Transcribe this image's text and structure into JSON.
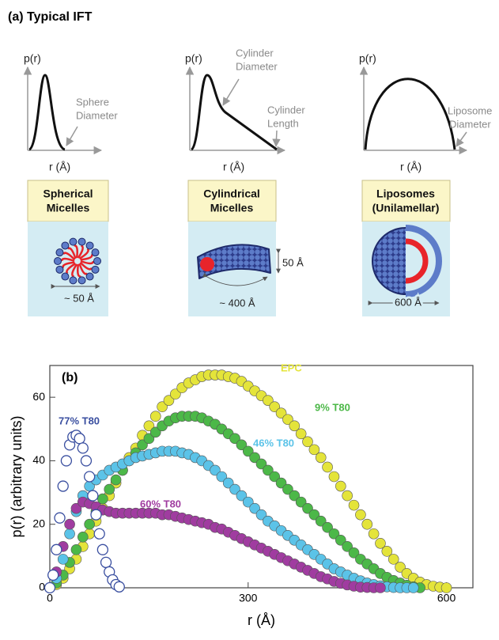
{
  "panel_a": {
    "title": "(a) Typical IFT",
    "columns": [
      {
        "ylabel": "p(r)",
        "xlabel": "r (Å)",
        "notes": [
          [
            "Sphere",
            "Diameter"
          ]
        ],
        "box": [
          "Spherical",
          "Micelles"
        ],
        "dims": [
          "~ 50 Å"
        ]
      },
      {
        "ylabel": "p(r)",
        "xlabel": "r (Å)",
        "notes": [
          [
            "Cylinder",
            "Diameter"
          ],
          [
            "Cylinder",
            "Length"
          ]
        ],
        "box": [
          "Cylindrical",
          "Micelles"
        ],
        "dims": [
          "~ 400 Å",
          "50 Å"
        ]
      },
      {
        "ylabel": "p(r)",
        "xlabel": "r (Å)",
        "notes": [
          [
            "Liposome",
            "Diameter"
          ]
        ],
        "box": [
          "Liposomes",
          "(Unilamellar)"
        ],
        "dims": [
          "600 Å"
        ]
      }
    ]
  },
  "chart_data": {
    "type": "scatter",
    "panel_label": "(b)",
    "x_label": "r (Å)",
    "y_label": "p(r) (arbitrary units)",
    "xlim": [
      0,
      640
    ],
    "ylim": [
      0,
      70
    ],
    "xticks": [
      0,
      300,
      600
    ],
    "yticks": [
      0,
      20,
      40,
      60
    ],
    "series": [
      {
        "name": "EPC",
        "color": "#e4e43a",
        "marker": "filled",
        "x": [
          0,
          10,
          20,
          30,
          40,
          50,
          60,
          70,
          80,
          90,
          100,
          110,
          120,
          130,
          140,
          150,
          160,
          170,
          180,
          190,
          200,
          210,
          220,
          230,
          240,
          250,
          260,
          270,
          280,
          290,
          300,
          310,
          320,
          330,
          340,
          350,
          360,
          370,
          380,
          390,
          400,
          410,
          420,
          430,
          440,
          450,
          460,
          470,
          480,
          490,
          500,
          510,
          520,
          530,
          540,
          550,
          560,
          570,
          580,
          590,
          600
        ],
        "values": [
          0,
          1,
          3,
          6,
          9,
          13,
          17,
          21,
          25,
          29,
          33,
          37,
          41,
          44,
          48,
          51,
          54,
          57,
          59,
          61,
          63,
          64.5,
          65.5,
          66.5,
          67,
          67,
          67,
          66.5,
          66,
          65,
          63.5,
          62,
          60.5,
          59,
          57,
          55,
          53,
          51,
          48.5,
          46,
          43.5,
          41,
          38,
          35,
          32,
          29,
          26,
          23,
          20,
          17,
          14,
          11.5,
          9,
          6.5,
          4.5,
          3,
          1.8,
          1,
          0.5,
          0.2,
          0
        ]
      },
      {
        "name": "9% T80",
        "color": "#4cb848",
        "marker": "filled",
        "x": [
          0,
          10,
          20,
          30,
          40,
          50,
          60,
          70,
          80,
          90,
          100,
          110,
          120,
          130,
          140,
          150,
          160,
          170,
          180,
          190,
          200,
          210,
          220,
          230,
          240,
          250,
          260,
          270,
          280,
          290,
          300,
          310,
          320,
          330,
          340,
          350,
          360,
          370,
          380,
          390,
          400,
          410,
          420,
          430,
          440,
          450,
          460,
          470,
          480,
          490,
          500,
          510,
          520,
          530,
          540,
          550,
          560
        ],
        "values": [
          0,
          1.5,
          4,
          8,
          12,
          16,
          20,
          24,
          28,
          31,
          34,
          37,
          40,
          42.5,
          45,
          47,
          49,
          51,
          52.5,
          53.5,
          54,
          54,
          54,
          53.5,
          52.5,
          51.5,
          50,
          48.5,
          47,
          45,
          43,
          41,
          39,
          37,
          35,
          33,
          31,
          29,
          27,
          25,
          23,
          21,
          19,
          17,
          15,
          13,
          11,
          9,
          7.5,
          6,
          4.5,
          3.3,
          2.3,
          1.5,
          0.8,
          0.3,
          0
        ]
      },
      {
        "name": "46% T80",
        "color": "#5bc3e8",
        "marker": "filled",
        "x": [
          0,
          10,
          20,
          30,
          40,
          50,
          60,
          70,
          80,
          90,
          100,
          110,
          120,
          130,
          140,
          150,
          160,
          170,
          180,
          190,
          200,
          210,
          220,
          230,
          240,
          250,
          260,
          270,
          280,
          290,
          300,
          310,
          320,
          330,
          340,
          350,
          360,
          370,
          380,
          390,
          400,
          410,
          420,
          430,
          440,
          450,
          460,
          470,
          480,
          490,
          500,
          510,
          520,
          530,
          540,
          550
        ],
        "values": [
          0,
          3,
          9,
          17,
          24,
          29,
          32,
          34,
          35.5,
          37,
          38,
          39,
          40,
          41,
          41.5,
          42,
          42.5,
          43,
          43,
          43,
          42.5,
          42,
          41,
          40,
          38.5,
          37,
          35,
          33,
          31,
          29,
          27,
          25,
          23,
          21,
          19.5,
          18,
          16.5,
          15,
          13.5,
          12,
          10.5,
          9,
          7.5,
          6,
          5,
          4,
          3,
          2.2,
          1.5,
          1,
          0.6,
          0.3,
          0.1,
          0,
          0,
          0
        ]
      },
      {
        "name": "60% T80",
        "color": "#a03ca0",
        "marker": "filled",
        "x": [
          0,
          10,
          20,
          30,
          40,
          50,
          60,
          70,
          80,
          90,
          100,
          110,
          120,
          130,
          140,
          150,
          160,
          170,
          180,
          190,
          200,
          210,
          220,
          230,
          240,
          250,
          260,
          270,
          280,
          290,
          300,
          310,
          320,
          330,
          340,
          350,
          360,
          370,
          380,
          390,
          400,
          410,
          420,
          430,
          440,
          450,
          460,
          470,
          480,
          490,
          500
        ],
        "values": [
          0,
          5,
          13,
          20,
          25,
          27,
          26.5,
          25.5,
          24.5,
          24,
          23.5,
          23.5,
          23.5,
          23.5,
          23.5,
          23.5,
          23.5,
          23,
          23,
          22.5,
          22,
          21.5,
          21,
          20.5,
          20,
          19,
          18.5,
          17.5,
          16.5,
          15.5,
          14.5,
          13.5,
          12.5,
          11.5,
          10.5,
          9.5,
          8.5,
          7.5,
          6.5,
          5.5,
          4.5,
          3.5,
          2.8,
          2,
          1.4,
          0.9,
          0.5,
          0.2,
          0.1,
          0,
          0
        ]
      },
      {
        "name": "77% T80",
        "color": "#3a4fa0",
        "marker": "open",
        "x": [
          0,
          5,
          10,
          15,
          20,
          25,
          30,
          35,
          40,
          45,
          50,
          55,
          60,
          65,
          70,
          75,
          80,
          85,
          90,
          95,
          100,
          105
        ],
        "values": [
          0,
          4,
          12,
          22,
          32,
          40,
          45,
          47.5,
          48,
          47,
          44,
          40,
          35,
          29,
          23,
          17,
          12,
          8,
          5,
          2.5,
          1,
          0.3
        ]
      }
    ]
  }
}
